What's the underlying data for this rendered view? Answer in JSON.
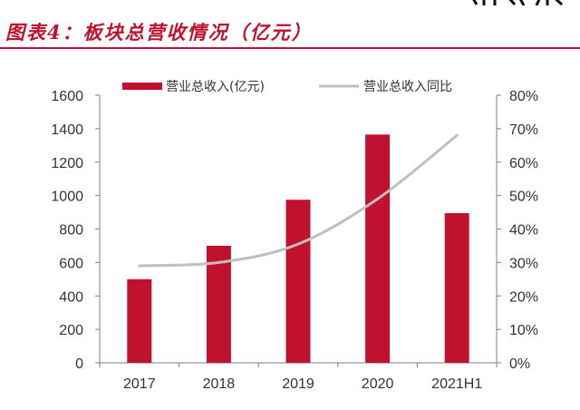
{
  "header": {
    "title": "图表4：板块总营收情况（亿元）"
  },
  "colors": {
    "accent": "#C0122E",
    "bar": "#C0122E",
    "line": "#BFBFBF",
    "axis": "#7F7F7F"
  },
  "chart_data": {
    "type": "bar",
    "categories": [
      "2017",
      "2018",
      "2019",
      "2020",
      "2021H1"
    ],
    "series": [
      {
        "name": "营业总收入(亿元)",
        "type": "bar",
        "axis": "left",
        "values": [
          500,
          700,
          975,
          1365,
          895
        ]
      },
      {
        "name": "营业总收入同比",
        "type": "line",
        "axis": "right",
        "values": [
          0.29,
          0.3,
          0.355,
          0.49,
          0.68
        ]
      }
    ],
    "y_left": {
      "min": 0,
      "max": 1600,
      "ticks": [
        0,
        200,
        400,
        600,
        800,
        1000,
        1200,
        1400,
        1600
      ]
    },
    "y_right": {
      "min": 0,
      "max": 0.8,
      "ticks": [
        "0%",
        "10%",
        "20%",
        "30%",
        "40%",
        "50%",
        "60%",
        "70%",
        "80%"
      ]
    },
    "grid": false,
    "legend_position": "top"
  }
}
